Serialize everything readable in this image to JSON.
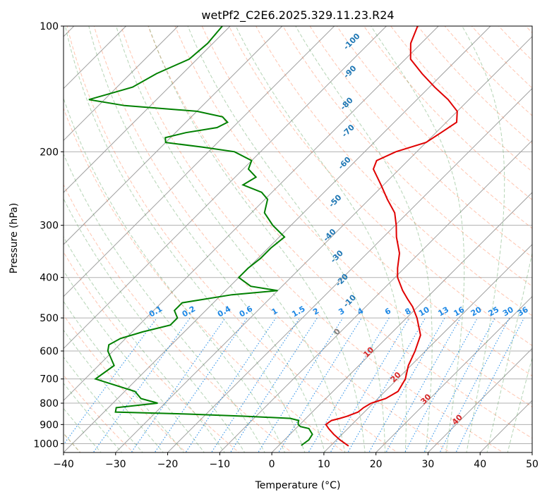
{
  "chart_data": {
    "type": "line",
    "title": "wetPf2_C2E6.2025.329.11.23.R24",
    "xlabel": "Temperature (°C)",
    "ylabel": "Pressure (hPa)",
    "xlim": [
      -40,
      50
    ],
    "ylim": [
      1050,
      100
    ],
    "y_scale": "log",
    "skew": true,
    "grid": true,
    "x_ticks": [
      "−40",
      "−30",
      "−20",
      "−10",
      "0",
      "10",
      "20",
      "30",
      "40",
      "50"
    ],
    "y_ticks": [
      "100",
      "200",
      "300",
      "400",
      "500",
      "600",
      "700",
      "800",
      "900",
      "1000"
    ],
    "series": [
      {
        "color": "#e00000",
        "p": [
          1013,
          980,
          950,
          920,
          900,
          880,
          870,
          860,
          840,
          820,
          800,
          780,
          750,
          700,
          650,
          600,
          550,
          500,
          470,
          450,
          430,
          400,
          380,
          350,
          320,
          300,
          280,
          260,
          240,
          220,
          210,
          200,
          190,
          180,
          170,
          160,
          150,
          140,
          130,
          120,
          110,
          100
        ],
        "t": [
          13.5,
          10.7,
          8.4,
          6.3,
          5.0,
          5.3,
          6.5,
          7.5,
          8.8,
          9.0,
          9.6,
          11.5,
          12.5,
          11.5,
          9.5,
          8.0,
          6.0,
          2.0,
          -1.0,
          -3.5,
          -6.0,
          -9.5,
          -11.3,
          -13.8,
          -17.5,
          -19.8,
          -22.5,
          -26.5,
          -30.5,
          -35.0,
          -36.0,
          -34.0,
          -30.0,
          -29.0,
          -28.0,
          -30.0,
          -34.0,
          -39.0,
          -44.0,
          -49.0,
          -52.0,
          -54.0
        ]
      },
      {
        "color": "#008000",
        "p": [
          1010,
          980,
          950,
          920,
          910,
          900,
          890,
          880,
          870,
          860,
          850,
          840,
          820,
          800,
          780,
          750,
          700,
          650,
          600,
          580,
          560,
          540,
          520,
          500,
          480,
          460,
          440,
          430,
          420,
          400,
          380,
          360,
          340,
          320,
          300,
          280,
          260,
          250,
          240,
          230,
          220,
          210,
          200,
          195,
          190,
          185,
          180,
          175,
          170,
          165,
          160,
          155,
          150,
          145,
          140,
          130,
          120,
          110,
          100
        ],
        "dd": [
          4.3,
          4.7,
          4.3,
          2.5,
          0.5,
          -0.3,
          -0.7,
          -1.0,
          -3.0,
          -12.0,
          -23.0,
          -37.8,
          -38.5,
          -31.4,
          -35.5,
          -38.0,
          -48.0,
          -47.0,
          -51.0,
          -52.0,
          -51.0,
          -48.0,
          -44.0,
          -44.0,
          -46.0,
          -46.0,
          -38.0,
          -30.0,
          -36.0,
          -40.0,
          -40.0,
          -39.5,
          -39.5,
          -39.0,
          -43.5,
          -47.5,
          -49.5,
          -52.0,
          -57.0,
          -56.0,
          -59.0,
          -60.0,
          -65.0,
          -72.0,
          -80.0,
          -81.0,
          -78.0,
          -73.0,
          -72.0,
          -74.0,
          -80.0,
          -95.0,
          -103.0,
          -100.0,
          -97.0,
          -95.0,
          -91.5,
          -91.0,
          -91.5
        ]
      }
    ],
    "isotherms": {
      "color": "#a0a0a0"
    },
    "dry_adiabats": {
      "color": "#ff7f50",
      "style": "dashed"
    },
    "moist_adiabats": {
      "color": "#5aa05a",
      "style": "dashed",
      "labels": [
        "-100",
        "-90",
        "-80",
        "-70",
        "-60",
        "-50",
        "-40",
        "-30",
        "-20",
        "-10"
      ],
      "label_color": "#1f77b4"
    },
    "mixing_ratio": {
      "color": "#1e88e5",
      "style": "dotted",
      "labels": [
        "0.1",
        "0.2",
        "0.4",
        "0.6",
        "1",
        "1.5",
        "2",
        "3",
        "4",
        "6",
        "8",
        "10",
        "13",
        "16",
        "20",
        "25",
        "30",
        "36"
      ]
    },
    "temperature_labels": {
      "color": "#d62728",
      "labels": [
        "0",
        "10",
        "20",
        "30",
        "40"
      ]
    }
  }
}
